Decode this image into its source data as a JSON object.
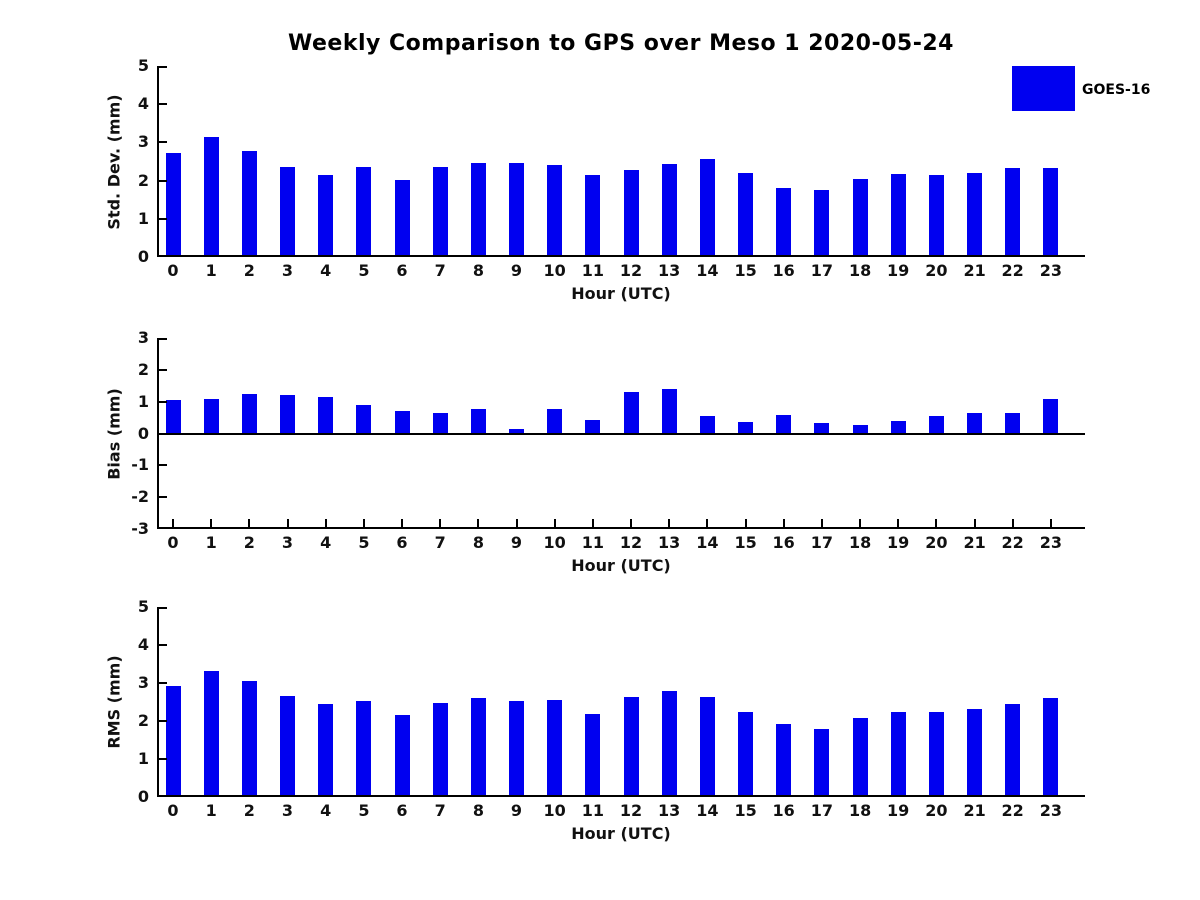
{
  "figure": {
    "title": "Weekly Comparison to GPS over Meso 1 2020-05-24",
    "legend": {
      "label": "GOES-16",
      "color": "#0000f0"
    }
  },
  "chart_data": [
    {
      "type": "bar",
      "title": "",
      "categories": [
        "0",
        "1",
        "2",
        "3",
        "4",
        "5",
        "6",
        "7",
        "8",
        "9",
        "10",
        "11",
        "12",
        "13",
        "14",
        "15",
        "16",
        "17",
        "18",
        "19",
        "20",
        "21",
        "22",
        "23"
      ],
      "series": [
        {
          "name": "GOES-16",
          "color": "#0000f0",
          "values": [
            2.72,
            3.15,
            2.78,
            2.36,
            2.15,
            2.36,
            2.03,
            2.36,
            2.47,
            2.47,
            2.4,
            2.14,
            2.27,
            2.43,
            2.57,
            2.21,
            1.81,
            1.76,
            2.04,
            2.17,
            2.14,
            2.21,
            2.34,
            2.32
          ]
        }
      ],
      "xlabel": "Hour (UTC)",
      "ylabel": "Std. Dev. (mm)",
      "ylim": [
        0,
        5
      ],
      "yticks": [
        0,
        1,
        2,
        3,
        4,
        5
      ],
      "grid": false,
      "legend_position": "outside-upper-right"
    },
    {
      "type": "bar",
      "title": "",
      "categories": [
        "0",
        "1",
        "2",
        "3",
        "4",
        "5",
        "6",
        "7",
        "8",
        "9",
        "10",
        "11",
        "12",
        "13",
        "14",
        "15",
        "16",
        "17",
        "18",
        "19",
        "20",
        "21",
        "22",
        "23"
      ],
      "series": [
        {
          "name": "GOES-16",
          "color": "#0000f0",
          "values": [
            1.05,
            1.08,
            1.25,
            1.22,
            1.15,
            0.9,
            0.7,
            0.63,
            0.76,
            0.15,
            0.77,
            0.43,
            1.3,
            1.4,
            0.56,
            0.37,
            0.59,
            0.33,
            0.27,
            0.4,
            0.55,
            0.65,
            0.65,
            1.07
          ]
        }
      ],
      "xlabel": "Hour (UTC)",
      "ylabel": "Bias (mm)",
      "ylim": [
        -3,
        3
      ],
      "yticks": [
        -3,
        -2,
        -1,
        0,
        1,
        2,
        3
      ],
      "grid": false,
      "legend_position": "none"
    },
    {
      "type": "bar",
      "title": "",
      "categories": [
        "0",
        "1",
        "2",
        "3",
        "4",
        "5",
        "6",
        "7",
        "8",
        "9",
        "10",
        "11",
        "12",
        "13",
        "14",
        "15",
        "16",
        "17",
        "18",
        "19",
        "20",
        "21",
        "22",
        "23"
      ],
      "series": [
        {
          "name": "GOES-16",
          "color": "#0000f0",
          "values": [
            2.93,
            3.32,
            3.05,
            2.65,
            2.45,
            2.53,
            2.16,
            2.47,
            2.6,
            2.52,
            2.55,
            2.18,
            2.62,
            2.8,
            2.62,
            2.25,
            1.92,
            1.79,
            2.07,
            2.23,
            2.23,
            2.33,
            2.44,
            2.6
          ]
        }
      ],
      "xlabel": "Hour (UTC)",
      "ylabel": "RMS (mm)",
      "ylim": [
        0,
        5
      ],
      "yticks": [
        0,
        1,
        2,
        3,
        4,
        5
      ],
      "grid": false,
      "legend_position": "none"
    }
  ]
}
